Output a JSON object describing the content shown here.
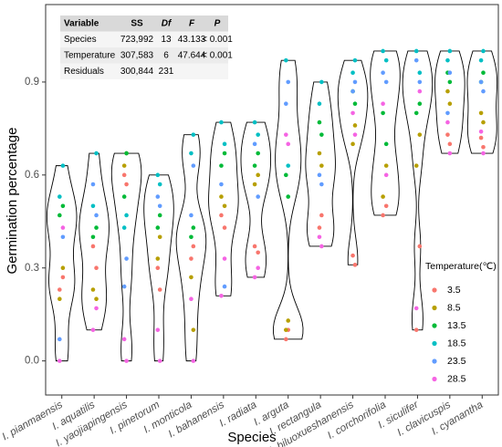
{
  "chart_data": {
    "type": "violin",
    "x_label": "Species",
    "y_label": "Germination percentage",
    "categories": [
      "I. pianmaensis",
      "I. aquatilis",
      "I. yaojiapingensis",
      "I. pinetorum",
      "I. monticola",
      "I. bahanensis",
      "I. radiata",
      "I. arguta",
      "I. rectangula",
      "I. biluoxueshanensis",
      "I. corchorifolia",
      "I. siculifer",
      "I. clavicuspis",
      "I. cyanantha"
    ],
    "ylim": [
      -0.11,
      1.15
    ],
    "yticks": [
      {
        "value": 0,
        "label": "0.0"
      },
      0.3,
      0.6,
      0.9
    ],
    "grid": false,
    "legend_title": "Temperature(℃)",
    "legend_position": "right",
    "series": [
      {
        "name": "3.5",
        "color": "#F8766D",
        "values": [
          [
            0.23,
            0.27
          ],
          [
            0.37,
            0.3
          ],
          [
            0.57,
            0.6
          ],
          [
            0.23,
            0.3
          ],
          [
            0.37,
            0.33
          ],
          [
            0.47,
            0.43
          ],
          [
            0.37,
            0.35
          ],
          [
            0.1,
            0.07
          ],
          [
            0.47,
            0.43
          ],
          [
            0.31,
            0.34
          ],
          [
            0.47,
            0.5
          ],
          [
            0.1,
            0.37
          ],
          [
            0.7,
            0.73
          ],
          [
            0.69,
            0.72
          ]
        ]
      },
      {
        "name": "8.5",
        "color": "#B79F00",
        "values": [
          [
            0.2,
            0.3
          ],
          [
            0.23,
            0.2
          ],
          [
            0.67,
            0.63
          ],
          [
            0.4,
            0.33
          ],
          [
            0.1,
            0.27
          ],
          [
            0.53,
            0.5
          ],
          [
            0.57,
            0.6
          ],
          [
            0.13,
            0.1
          ],
          [
            0.63,
            0.67
          ],
          [
            0.76,
            0.7
          ],
          [
            0.53,
            0.63
          ],
          [
            0.63,
            0.73
          ],
          [
            0.83,
            0.87
          ],
          [
            0.77,
            0.8
          ]
        ]
      },
      {
        "name": "13.5",
        "color": "#00BA38",
        "values": [
          [
            0.47,
            0.5
          ],
          [
            0.4,
            0.43
          ],
          [
            0.67,
            0.53
          ],
          [
            0.47,
            0.43
          ],
          [
            0.43,
            0.4
          ],
          [
            0.63,
            0.67
          ],
          [
            0.63,
            0.67
          ],
          [
            0.53,
            0.6
          ],
          [
            0.73,
            0.77
          ],
          [
            0.83,
            0.87
          ],
          [
            0.8,
            0.7
          ],
          [
            0.8,
            0.83
          ],
          [
            0.9,
            0.93
          ],
          [
            0.93,
            0.9
          ]
        ]
      },
      {
        "name": "18.5",
        "color": "#00BFC4",
        "values": [
          [
            0.53,
            0.63
          ],
          [
            0.5,
            0.67
          ],
          [
            0.47,
            0.43
          ],
          [
            0.57,
            0.6
          ],
          [
            0.73,
            0.67
          ],
          [
            0.77,
            0.7
          ],
          [
            0.77,
            0.73
          ],
          [
            0.63,
            0.97
          ],
          [
            0.9,
            0.83
          ],
          [
            0.97,
            0.93
          ],
          [
            1.0,
            0.97
          ],
          [
            1.0,
            0.93
          ],
          [
            1.0,
            0.97
          ],
          [
            1.0,
            0.97
          ]
        ]
      },
      {
        "name": "23.5",
        "color": "#619CFF",
        "values": [
          [
            0.07,
            0.4
          ],
          [
            0.57,
            0.47
          ],
          [
            0.33,
            0.24
          ],
          [
            0.5,
            0.53
          ],
          [
            0.63,
            0.47
          ],
          [
            0.57,
            0.24
          ],
          [
            0.7,
            0.53
          ],
          [
            0.9,
            0.83
          ],
          [
            0.57,
            0.6
          ],
          [
            0.9,
            0.87
          ],
          [
            0.93,
            0.9
          ],
          [
            0.97,
            0.9
          ],
          [
            0.93,
            0.8
          ],
          [
            0.87,
            0.9
          ]
        ]
      },
      {
        "name": "28.5",
        "color": "#F564E3",
        "values": [
          [
            0.0,
            0.43
          ],
          [
            0.1,
            0.17
          ],
          [
            0.0,
            0.07
          ],
          [
            0.0,
            0.1
          ],
          [
            0.0,
            0.2
          ],
          [
            0.21,
            0.33
          ],
          [
            0.27,
            0.3
          ],
          [
            0.7,
            0.73
          ],
          [
            0.37,
            0.4
          ],
          [
            0.73,
            0.8
          ],
          [
            0.83,
            0.6
          ],
          [
            0.17,
            0.87
          ],
          [
            0.67,
            0.77
          ],
          [
            0.67,
            0.74
          ]
        ]
      }
    ],
    "table": {
      "columns": [
        "Variable",
        "SS",
        "Df",
        "F",
        "P"
      ],
      "rows": [
        [
          "Species",
          "723,992",
          "13",
          "43.133",
          "< 0.001"
        ],
        [
          "Temperature",
          "307,583",
          "6",
          "47.644",
          "< 0.001"
        ],
        [
          "Residuals",
          "300,844",
          "231"
        ]
      ]
    }
  }
}
